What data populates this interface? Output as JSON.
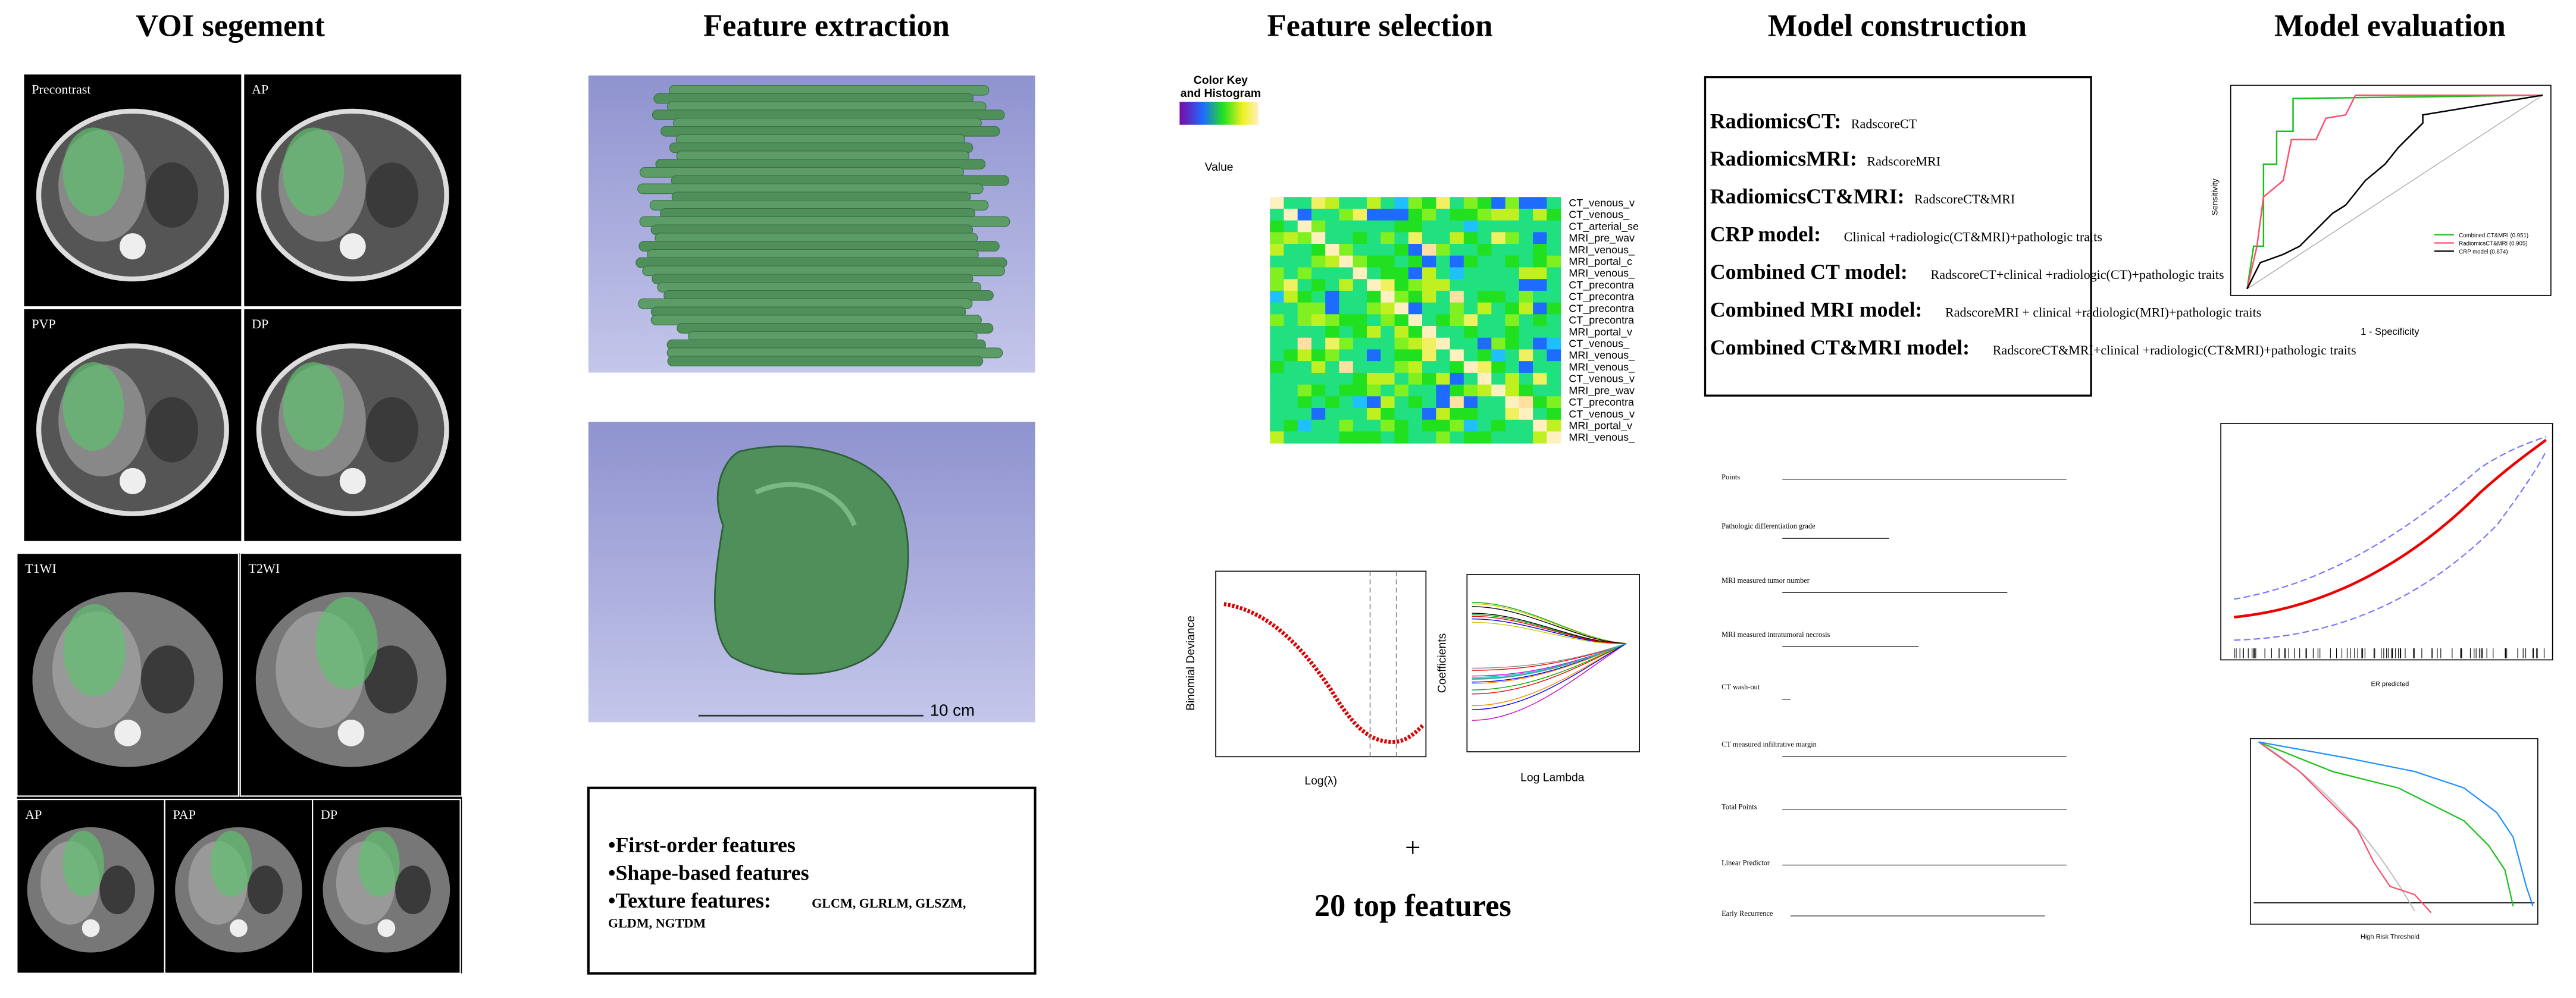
{
  "columns": [
    "VOI segement",
    "Feature extraction",
    "Feature selection",
    "Model construction",
    "Model evaluation"
  ],
  "voi": {
    "ct_panels": [
      "Precontrast",
      "AP",
      "PVP",
      "DP"
    ],
    "mri_panels": [
      "T1WI",
      "T2WI",
      "AP",
      "PAP",
      "DP"
    ]
  },
  "extraction": {
    "scale": "10 cm",
    "features": [
      "•First-order features",
      "•Shape-based features",
      "•Texture features: "
    ],
    "texture_list": "GLCM, GLRLM, GLSZM,",
    "texture_list2": "GLDM, NGTDM"
  },
  "selection": {
    "color_key": "Color Key",
    "color_key2": "and Histogram",
    "key_axis": "Value",
    "heatmap_rows": [
      "CT_venous_v",
      "CT_venous_",
      "CT_arterial_se",
      "MRI_pre_wav",
      "MRI_venous_",
      "MRI_portal_c",
      "MRI_venous_",
      "CT_precontra",
      "CT_precontra",
      "CT_precontra",
      "CT_precontra",
      "MRI_portal_v",
      "CT_venous_",
      "MRI_venous_",
      "MRI_venous_",
      "CT_venous_v",
      "MRI_pre_wav",
      "CT_precontra",
      "CT_venous_v",
      "MRI_portal_v",
      "MRI_venous_"
    ],
    "lasso_x": "Log(λ)",
    "lasso_y": "Binomial Deviance",
    "coef_x": "Log Lambda",
    "coef_y": "Coefficients",
    "plus": "+",
    "top": "20 top features"
  },
  "construction": {
    "models": [
      {
        "label": "RadiomicsCT:",
        "formula": "RadscoreCT"
      },
      {
        "label": "RadiomicsMRI:",
        "formula": "RadscoreMRI"
      },
      {
        "label": "RadiomicsCT&MRI:",
        "formula": "RadscoreCT&MRI"
      },
      {
        "label": "CRP model:",
        "formula": "Clinical +radiologic(CT&MRI)+pathologic traits"
      },
      {
        "label": "Combined CT model:",
        "formula": "RadscoreCT+clinical +radiologic(CT)+pathologic traits"
      },
      {
        "label": "Combined MRI model:",
        "formula": "RadscoreMRI + clinical +radiologic(MRI)+pathologic traits"
      },
      {
        "label": "Combined CT&MRI model:",
        "formula": "RadscoreCT&MRI+clinical +radiologic(CT&MRI)+pathologic traits"
      }
    ],
    "nomogram": [
      "Points",
      "Pathologic differentiation grade",
      "MRI measured tumor number",
      "MRI measured intratumoral necrosis",
      "CT wash-out",
      "CT measured infiltrative margin",
      "Total Points",
      "Linear Predictor",
      "Early Recurrence"
    ]
  },
  "evaluation": {
    "roc_x": "1 - Specificity",
    "roc_y": "Sensitivity",
    "roc_legend": [
      "Combined CT&MRI (0.951)",
      "RadiomicsCT&MRI (0.905)",
      "CRP model (0.874)"
    ],
    "cal_x": "ER predicted",
    "dca_x": "High Risk Threshold"
  }
}
